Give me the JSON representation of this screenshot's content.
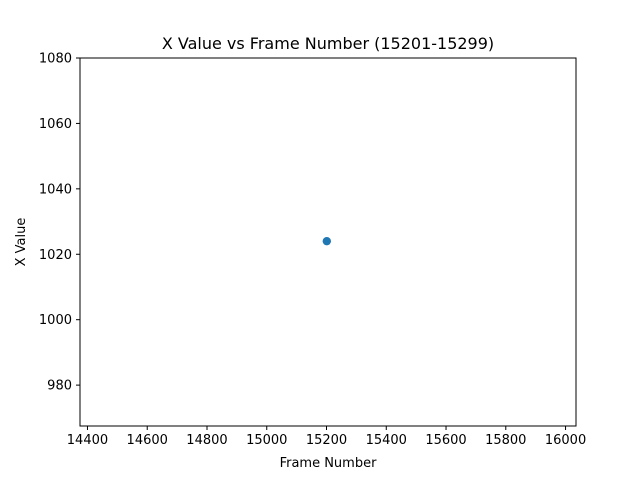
{
  "chart_data": {
    "type": "scatter",
    "title": "X Value vs Frame Number (15201-15299)",
    "xlabel": "Frame Number",
    "ylabel": "X Value",
    "xlim": [
      14375,
      16035
    ],
    "ylim": [
      967.5,
      1080
    ],
    "xticks": [
      14400,
      14600,
      14800,
      15000,
      15200,
      15400,
      15600,
      15800,
      16000
    ],
    "yticks": [
      980,
      1000,
      1020,
      1040,
      1060,
      1080
    ],
    "grid": false,
    "series": [
      {
        "color": "#1f77b4",
        "points": [
          {
            "x": 15201,
            "y": 1024
          }
        ]
      }
    ]
  }
}
